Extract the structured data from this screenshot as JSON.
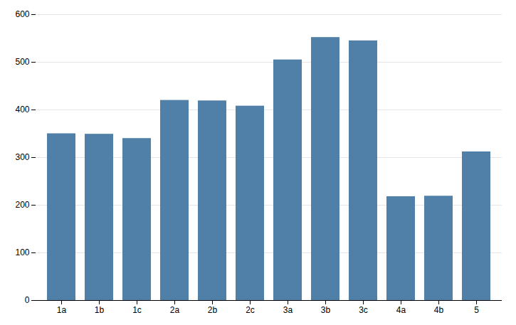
{
  "chart_data": {
    "type": "bar",
    "categories": [
      "1a",
      "1b",
      "1c",
      "2a",
      "2b",
      "2c",
      "3a",
      "3b",
      "3c",
      "4a",
      "4b",
      "5"
    ],
    "values": [
      350,
      349,
      340,
      420,
      419,
      408,
      505,
      552,
      545,
      218,
      219,
      312
    ],
    "color": "#5080a8",
    "ylim": [
      0,
      600
    ],
    "yticks": [
      0,
      100,
      200,
      300,
      400,
      500,
      600
    ],
    "grid": true
  }
}
